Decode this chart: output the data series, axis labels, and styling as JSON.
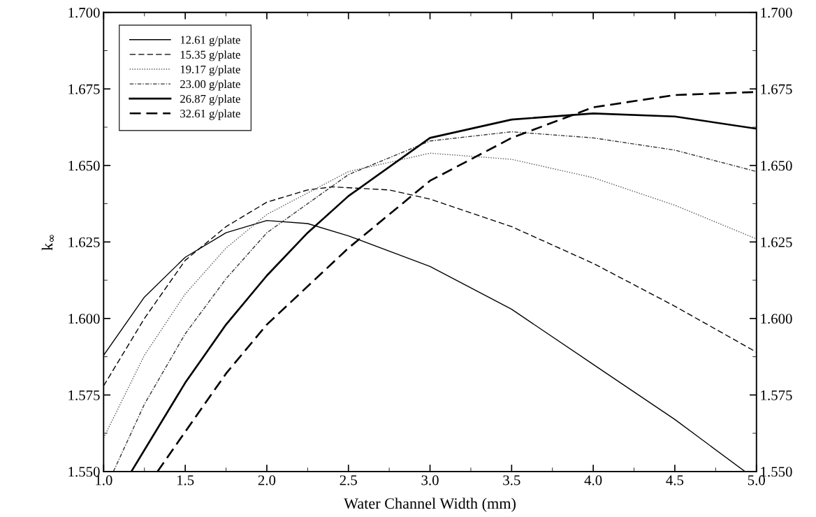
{
  "chart_data": {
    "type": "line",
    "xlabel": "Water Channel Width (mm)",
    "ylabel": "k$_{∞}$",
    "xlim": [
      1.0,
      5.0
    ],
    "xticks": [
      {
        "value": 1.0,
        "label": "1.0"
      },
      {
        "value": 1.5,
        "label": "1.5"
      },
      {
        "value": 2.0,
        "label": "2.0"
      },
      {
        "value": 2.5,
        "label": "2.5"
      },
      {
        "value": 3.0,
        "label": "3.0"
      },
      {
        "value": 3.5,
        "label": "3.5"
      },
      {
        "value": 4.0,
        "label": "4.0"
      },
      {
        "value": 4.5,
        "label": "4.5"
      },
      {
        "value": 5.0,
        "label": "5.0"
      }
    ],
    "ylim": [
      1.55,
      1.7
    ],
    "yticks": [
      {
        "value": 1.55,
        "label": "1.550"
      },
      {
        "value": 1.575,
        "label": "1.575"
      },
      {
        "value": 1.6,
        "label": "1.600"
      },
      {
        "value": 1.625,
        "label": "1.625"
      },
      {
        "value": 1.65,
        "label": "1.650"
      },
      {
        "value": 1.675,
        "label": "1.675"
      },
      {
        "value": 1.7,
        "label": "1.700"
      }
    ],
    "y2lim": [
      1.55,
      1.7
    ],
    "y2ticks": [
      {
        "value": 1.55,
        "label": "1.550"
      },
      {
        "value": 1.575,
        "label": "1.575"
      },
      {
        "value": 1.6,
        "label": "1.600"
      },
      {
        "value": 1.625,
        "label": "1.625"
      },
      {
        "value": 1.65,
        "label": "1.650"
      },
      {
        "value": 1.675,
        "label": "1.675"
      },
      {
        "value": 1.7,
        "label": "1.700"
      }
    ],
    "legend": "top left",
    "grid": false,
    "marker": "none",
    "series": [
      {
        "name": "12.61 g/plate",
        "color": "#000000",
        "line_style": "solid",
        "x": [
          1.0,
          1.25,
          1.5,
          1.75,
          2.0,
          2.25,
          2.5,
          3.0,
          3.5,
          4.0,
          4.5,
          4.93
        ],
        "values": [
          1.588,
          1.607,
          1.62,
          1.628,
          1.632,
          1.631,
          1.627,
          1.617,
          1.603,
          1.585,
          1.567,
          1.55
        ]
      },
      {
        "name": "15.35 g/plate",
        "color": "#000000",
        "line_style": "dashed",
        "x": [
          1.0,
          1.25,
          1.5,
          1.75,
          2.0,
          2.25,
          2.4,
          2.75,
          3.0,
          3.5,
          4.0,
          4.5,
          5.0
        ],
        "values": [
          1.578,
          1.6,
          1.619,
          1.63,
          1.638,
          1.642,
          1.643,
          1.642,
          1.639,
          1.63,
          1.618,
          1.604,
          1.589
        ]
      },
      {
        "name": "19.17 g/plate",
        "color": "#555555",
        "line_style": "dotted",
        "x": [
          1.0,
          1.25,
          1.5,
          1.75,
          2.0,
          2.5,
          3.0,
          3.5,
          4.0,
          4.5,
          5.0
        ],
        "values": [
          1.561,
          1.588,
          1.608,
          1.623,
          1.634,
          1.648,
          1.654,
          1.652,
          1.646,
          1.637,
          1.626
        ]
      },
      {
        "name": "23.00 g/plate",
        "color": "#333333",
        "line_style": "dashdot",
        "x": [
          1.06,
          1.25,
          1.5,
          1.75,
          2.0,
          2.5,
          3.0,
          3.5,
          4.0,
          4.5,
          5.0
        ],
        "values": [
          1.55,
          1.572,
          1.595,
          1.613,
          1.628,
          1.647,
          1.658,
          1.661,
          1.659,
          1.655,
          1.648
        ]
      },
      {
        "name": "26.87 g/plate",
        "color": "#000000",
        "line_style": "solid",
        "x": [
          1.17,
          1.5,
          1.75,
          2.0,
          2.25,
          2.5,
          3.0,
          3.5,
          4.0,
          4.5,
          5.0
        ],
        "values": [
          1.55,
          1.579,
          1.598,
          1.614,
          1.628,
          1.64,
          1.659,
          1.665,
          1.667,
          1.666,
          1.662
        ]
      },
      {
        "name": "32.61 g/plate",
        "color": "#000000",
        "line_style": "dashed",
        "x": [
          1.33,
          1.5,
          1.75,
          2.0,
          2.5,
          3.0,
          3.5,
          4.0,
          4.5,
          5.0
        ],
        "values": [
          1.55,
          1.563,
          1.582,
          1.598,
          1.623,
          1.645,
          1.659,
          1.669,
          1.673,
          1.674
        ]
      }
    ]
  }
}
